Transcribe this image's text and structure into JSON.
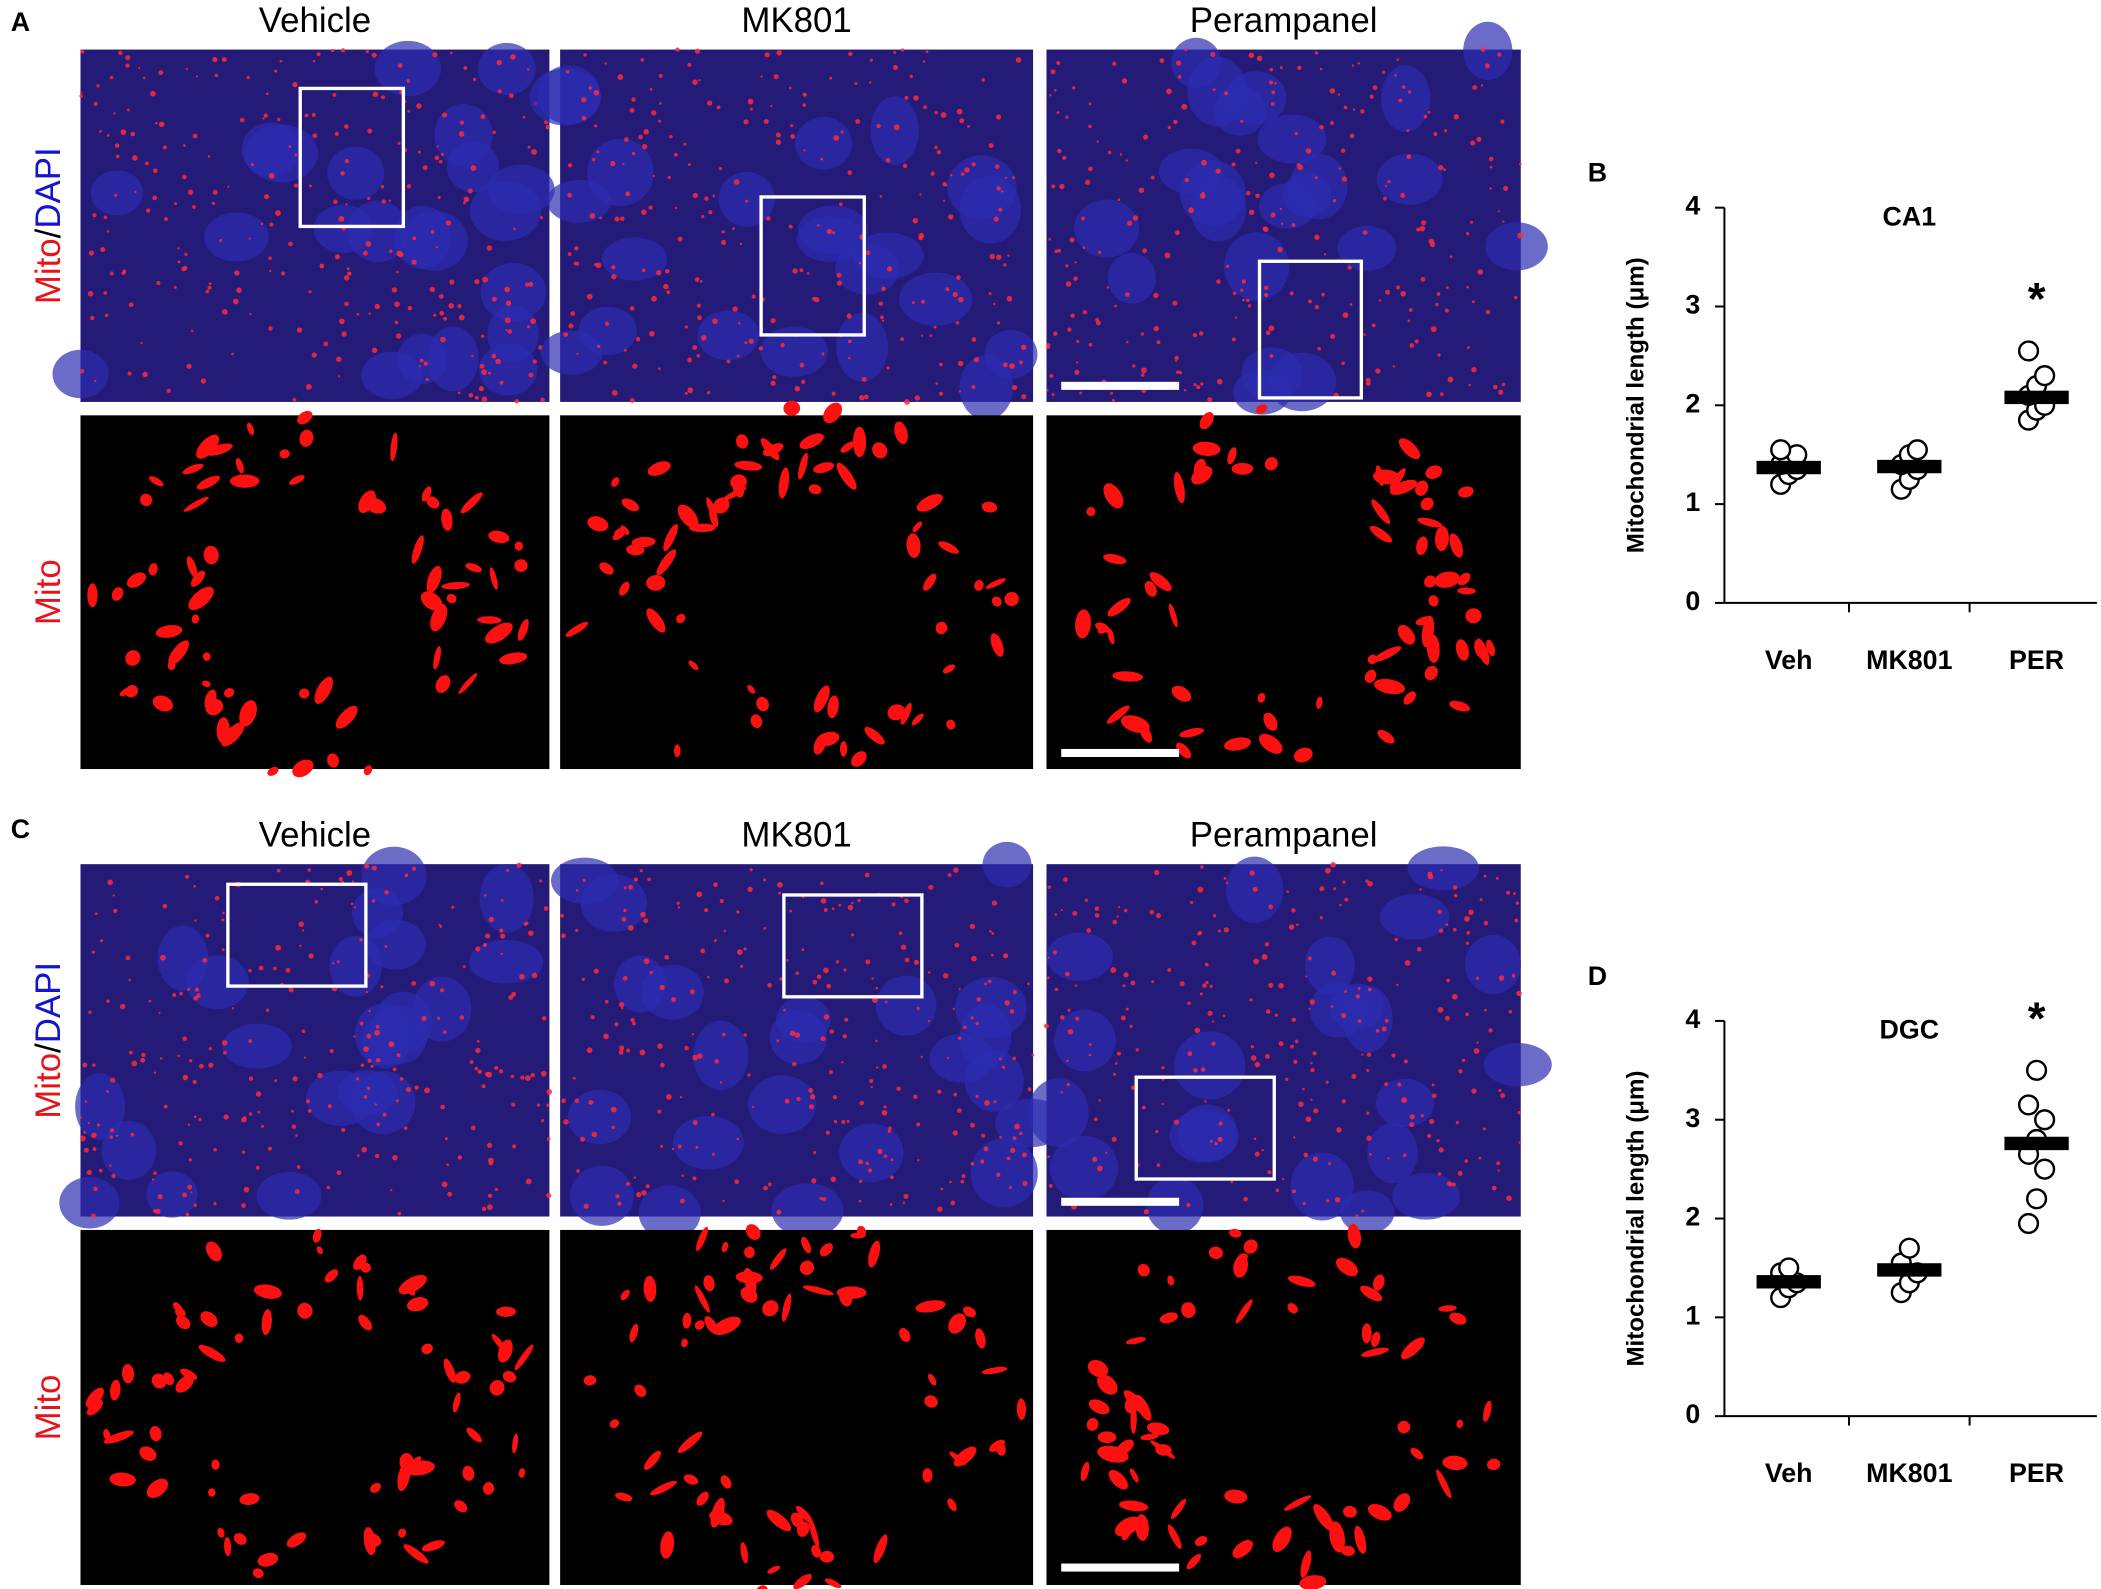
{
  "panels": [
    {
      "label": "A",
      "columns": [
        "Vehicle",
        "MK801",
        "Perampanel"
      ],
      "row_labels": [
        [
          "Mito",
          "/",
          "DAPI"
        ],
        [
          "Mito"
        ]
      ]
    },
    {
      "label": "C",
      "columns": [
        "Vehicle",
        "MK801",
        "Perampanel"
      ],
      "row_labels": [
        [
          "Mito",
          "/",
          "DAPI"
        ],
        [
          "Mito"
        ]
      ]
    }
  ],
  "chart_data": [
    {
      "type": "strip",
      "panel": "B",
      "title": "CA1",
      "y_label": "Mitochondrial length (μm)",
      "annotation": "*",
      "categories": [
        "Veh",
        "MK801",
        "PER"
      ],
      "points": [
        [
          1.2,
          1.3,
          1.35,
          1.4,
          1.45,
          1.5,
          1.55
        ],
        [
          1.15,
          1.25,
          1.35,
          1.4,
          1.5,
          1.55
        ],
        [
          1.85,
          1.95,
          2.0,
          2.1,
          2.2,
          2.3,
          2.55
        ]
      ],
      "means": [
        1.37,
        1.38,
        2.08
      ],
      "ylim": [
        0,
        4
      ],
      "yticks": [
        0,
        1,
        2,
        3,
        4
      ]
    },
    {
      "type": "strip",
      "panel": "D",
      "title": "DGC",
      "y_label": "Mitochondrial length (μm)",
      "annotation": "*",
      "categories": [
        "Veh",
        "MK801",
        "PER"
      ],
      "points": [
        [
          1.2,
          1.3,
          1.35,
          1.45,
          1.5
        ],
        [
          1.25,
          1.35,
          1.45,
          1.55,
          1.7
        ],
        [
          1.95,
          2.2,
          2.5,
          2.65,
          2.8,
          3.0,
          3.15,
          3.5
        ]
      ],
      "means": [
        1.36,
        1.48,
        2.76
      ],
      "ylim": [
        0,
        4
      ],
      "yticks": [
        0,
        1,
        2,
        3,
        4
      ]
    }
  ]
}
